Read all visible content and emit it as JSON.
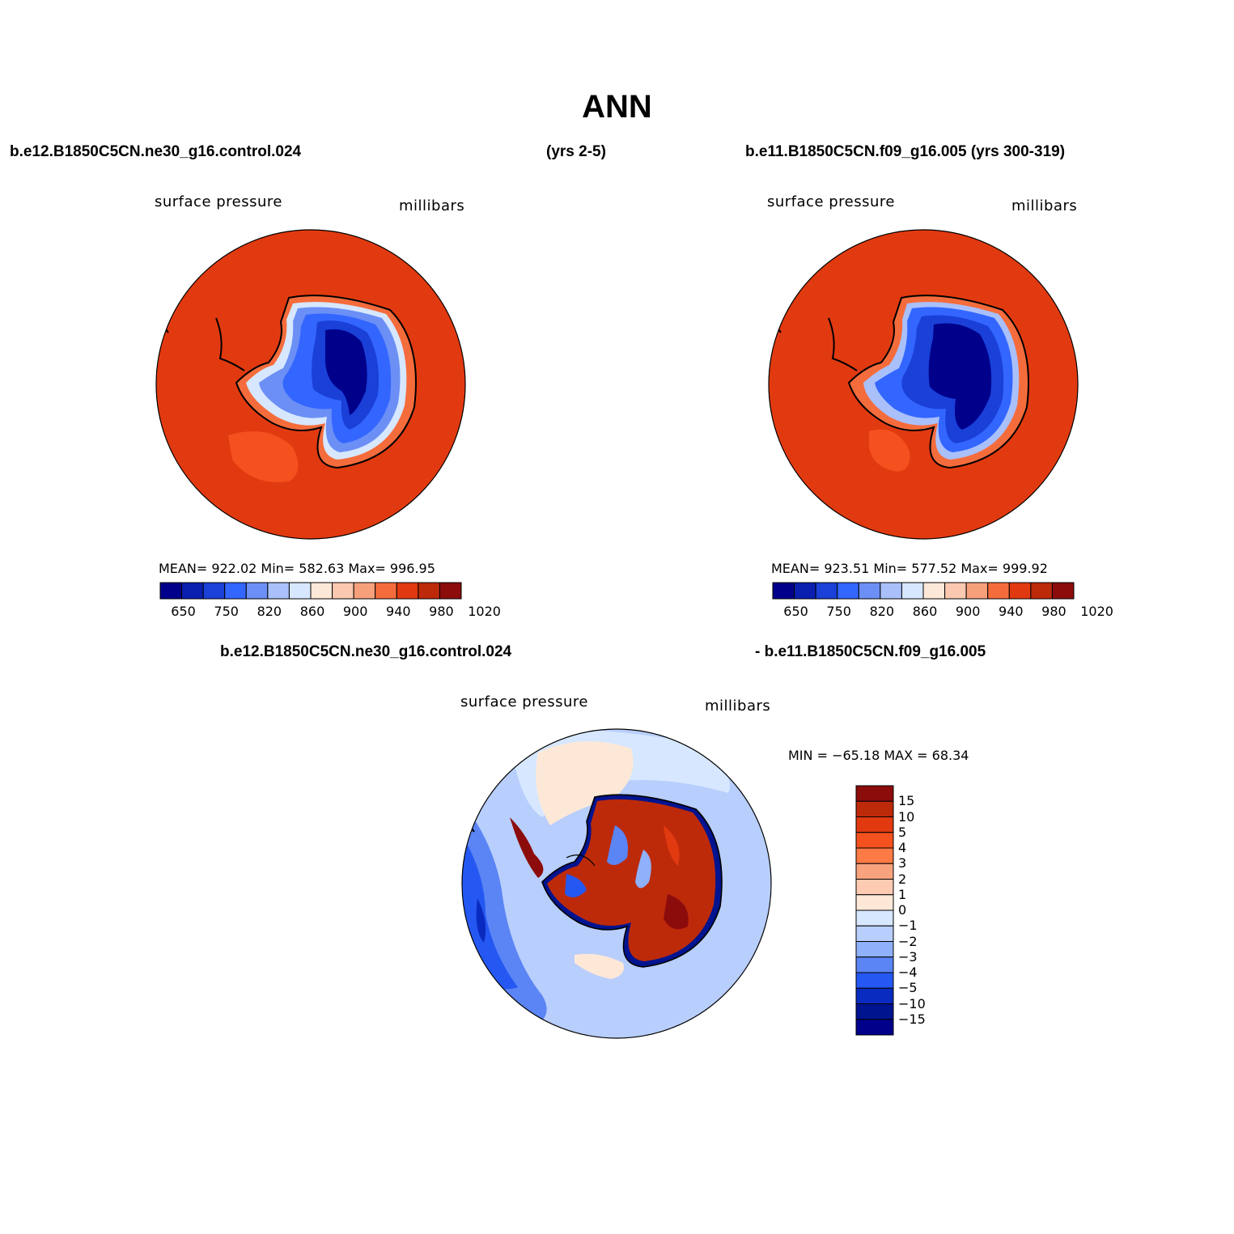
{
  "title": "ANN",
  "left_panel": {
    "case": "b.e12.B1850C5CN.ne30_g16.control.024",
    "years": "(yrs 2-5)",
    "variable": "surface pressure",
    "units": "millibars",
    "stats": "MEAN= 922.02   Min= 582.63   Max= 996.95",
    "mean": 922.02,
    "min": 582.63,
    "max": 996.95
  },
  "right_panel": {
    "case_years": "b.e11.B1850C5CN.f09_g16.005 (yrs 300-319)",
    "variable": "surface pressure",
    "units": "millibars",
    "stats": "MEAN= 923.51   Min= 577.52   Max= 999.92",
    "mean": 923.51,
    "min": 577.52,
    "max": 999.92
  },
  "diff_panel": {
    "case_a": "b.e12.B1850C5CN.ne30_g16.control.024",
    "case_b": "- b.e11.B1850C5CN.f09_g16.005",
    "variable": "surface pressure",
    "units": "millibars",
    "stats": "MIN = −65.18 MAX =   68.34",
    "min": -65.18,
    "max": 68.34
  },
  "colorbar_abs": {
    "ticks": [
      "650",
      "750",
      "820",
      "860",
      "900",
      "940",
      "980",
      "1020"
    ],
    "colors": [
      "#00008b",
      "#0a1fb0",
      "#1a40d8",
      "#3366ff",
      "#6b8ff5",
      "#a9c0fb",
      "#d6e7ff",
      "#fde8d8",
      "#fbc8b0",
      "#f7a07c",
      "#f56c3c",
      "#e23a10",
      "#bd2a0a",
      "#8c0c0c"
    ]
  },
  "colorbar_diff": {
    "ticks": [
      "15",
      "10",
      "5",
      "4",
      "3",
      "2",
      "1",
      "0",
      "−1",
      "−2",
      "−3",
      "−4",
      "−5",
      "−10",
      "−15"
    ],
    "colors": [
      "#8c0c0c",
      "#bd2a0a",
      "#e23a10",
      "#f4511e",
      "#ff7a45",
      "#f8a37d",
      "#fdcab2",
      "#fde8d8",
      "#d6e7ff",
      "#b8cefc",
      "#8fb0fa",
      "#5b84f5",
      "#2558f2",
      "#0a2bbf",
      "#00148f",
      "#00008b"
    ]
  },
  "colors": {
    "ocean_abs": "#e23a10",
    "ocean_diff_light": "#b8cefc",
    "ocean_diff_mid": "#5b84f5",
    "ocean_diff_dark": "#2558f2",
    "peninsula_shelf_pink": "#fde8d8"
  }
}
